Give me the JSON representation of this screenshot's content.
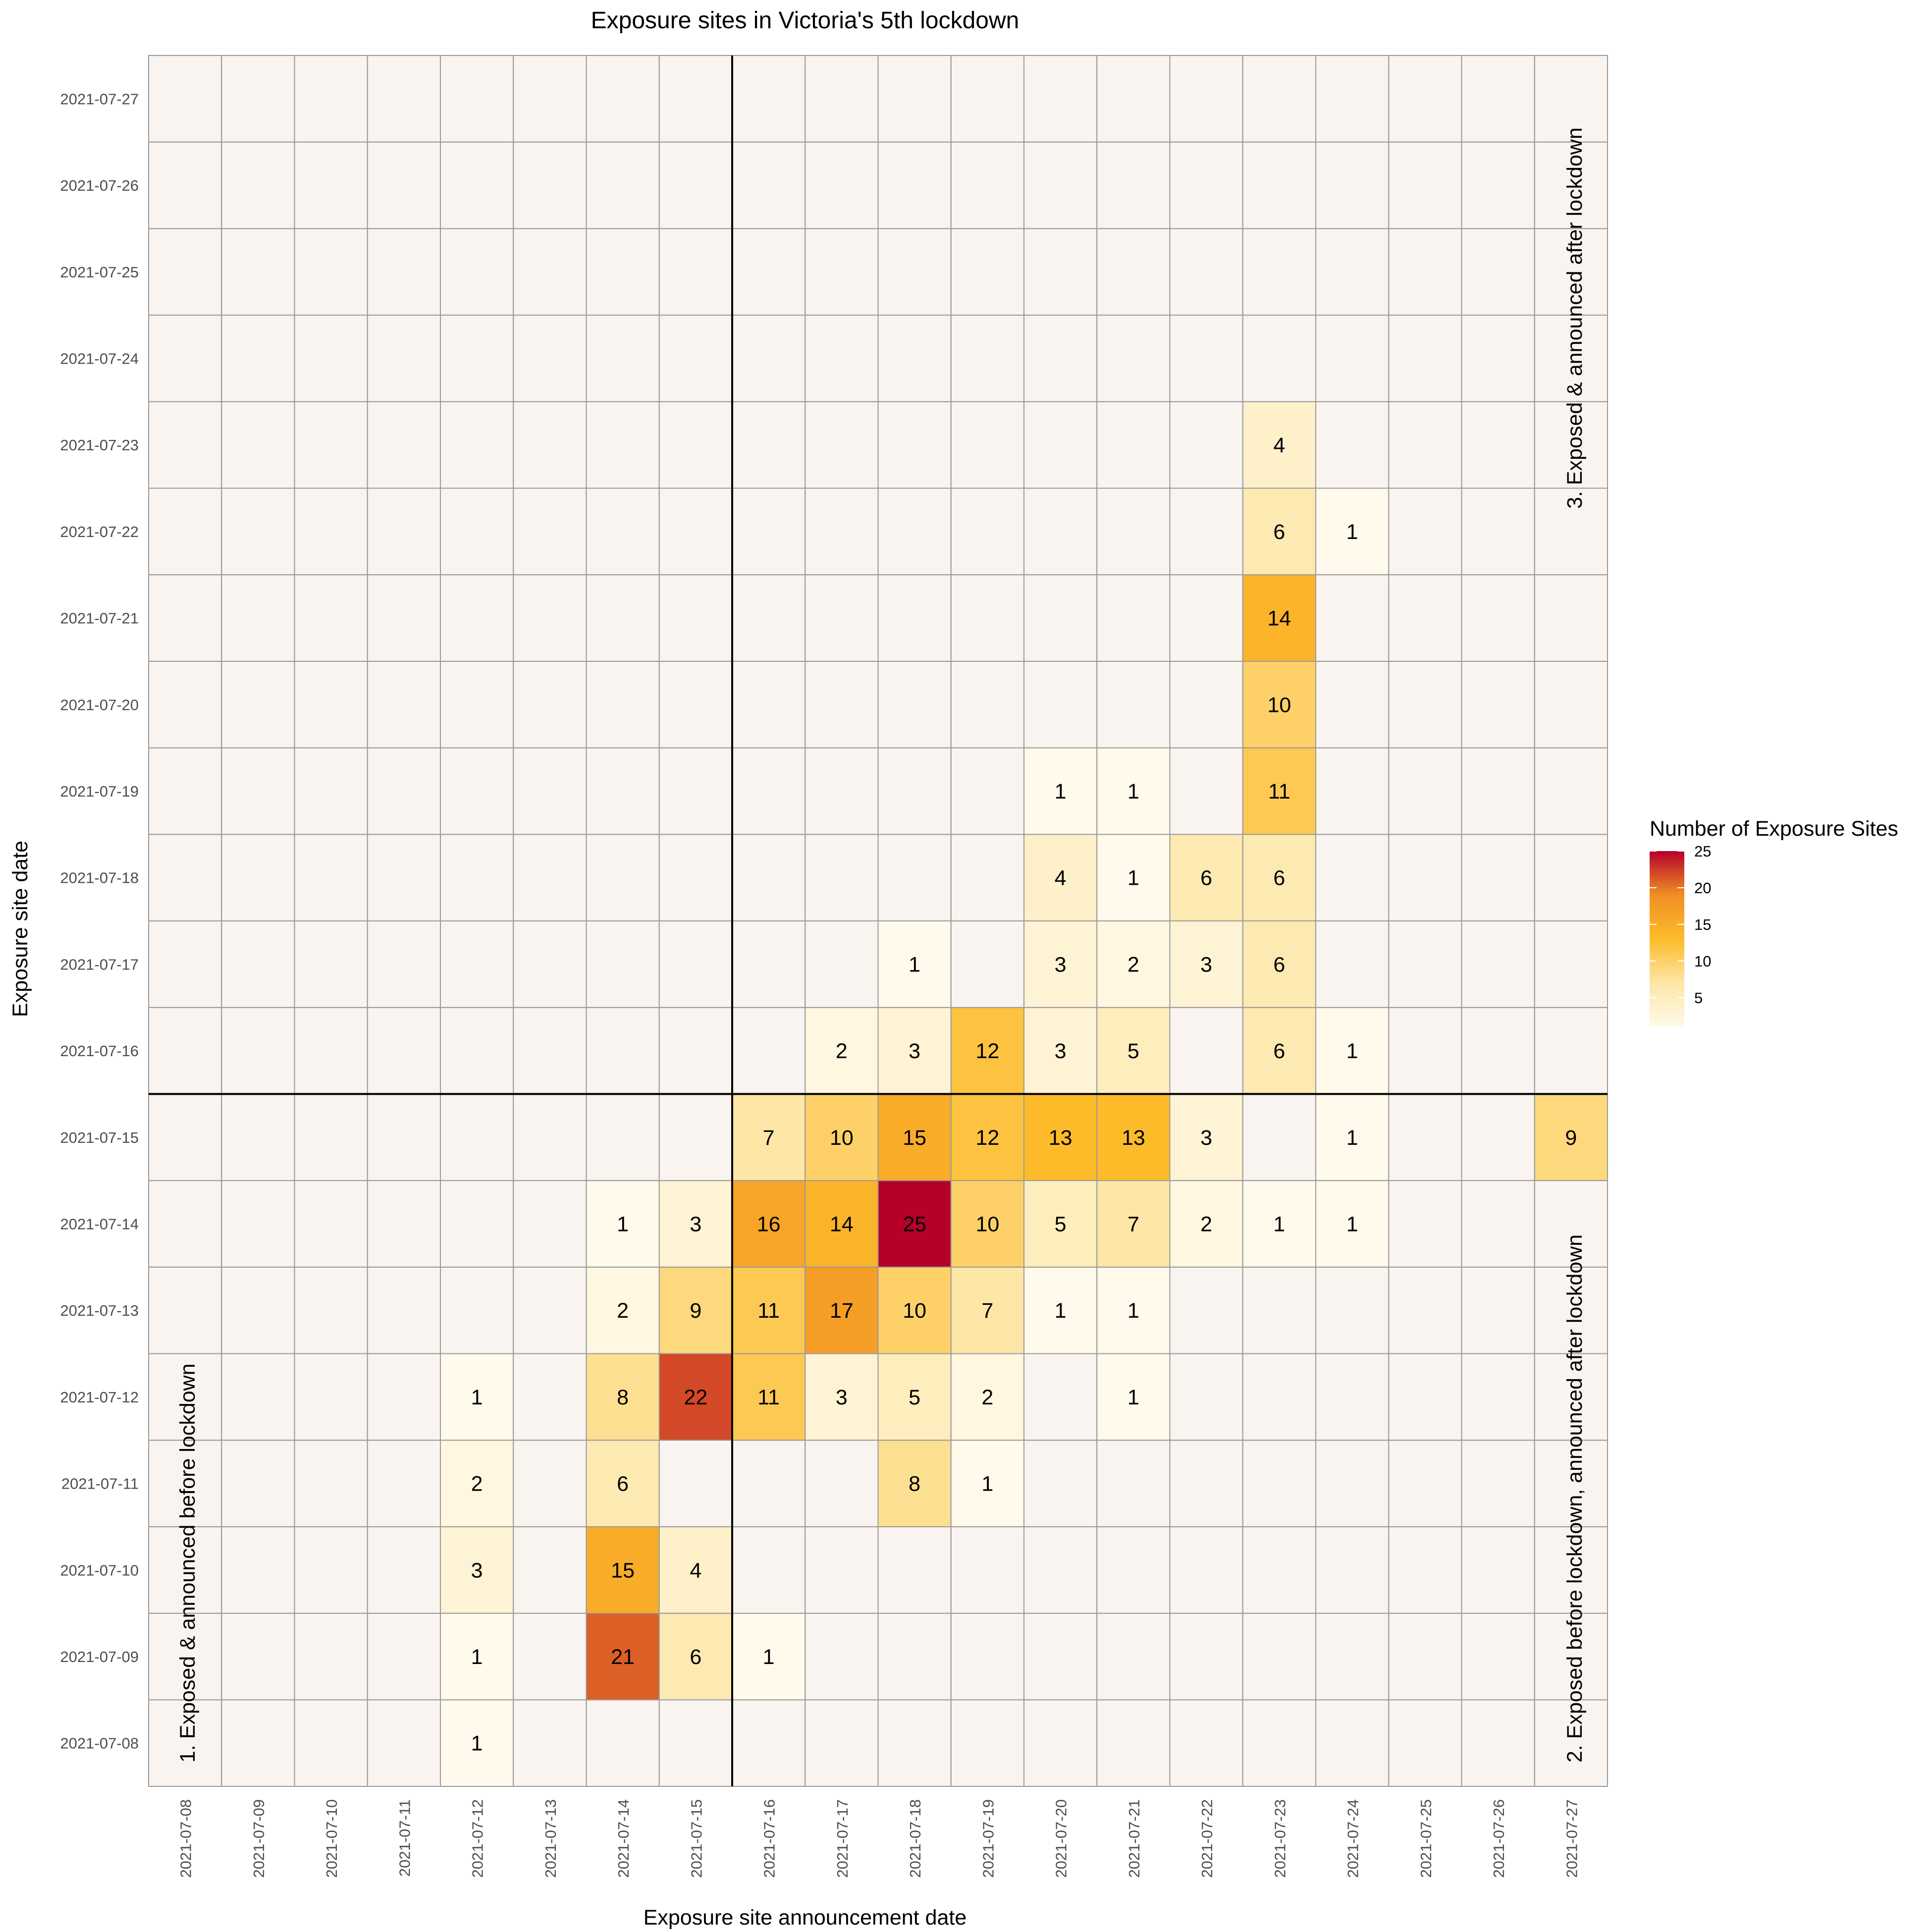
{
  "chart_data": {
    "type": "heatmap",
    "title": "Exposure sites in Victoria's 5th lockdown",
    "xlabel": "Exposure site announcement date",
    "ylabel": "Exposure site date",
    "x": [
      "2021-07-08",
      "2021-07-09",
      "2021-07-10",
      "2021-07-11",
      "2021-07-12",
      "2021-07-13",
      "2021-07-14",
      "2021-07-15",
      "2021-07-16",
      "2021-07-17",
      "2021-07-18",
      "2021-07-19",
      "2021-07-20",
      "2021-07-21",
      "2021-07-22",
      "2021-07-23",
      "2021-07-24",
      "2021-07-25",
      "2021-07-26",
      "2021-07-27"
    ],
    "y": [
      "2021-07-08",
      "2021-07-09",
      "2021-07-10",
      "2021-07-11",
      "2021-07-12",
      "2021-07-13",
      "2021-07-14",
      "2021-07-15",
      "2021-07-16",
      "2021-07-17",
      "2021-07-18",
      "2021-07-19",
      "2021-07-20",
      "2021-07-21",
      "2021-07-22",
      "2021-07-23",
      "2021-07-24",
      "2021-07-25",
      "2021-07-26",
      "2021-07-27"
    ],
    "cells": [
      [
        "2021-07-12",
        "2021-07-08",
        1
      ],
      [
        "2021-07-12",
        "2021-07-09",
        1
      ],
      [
        "2021-07-14",
        "2021-07-09",
        21
      ],
      [
        "2021-07-15",
        "2021-07-09",
        6
      ],
      [
        "2021-07-16",
        "2021-07-09",
        1
      ],
      [
        "2021-07-12",
        "2021-07-10",
        3
      ],
      [
        "2021-07-14",
        "2021-07-10",
        15
      ],
      [
        "2021-07-15",
        "2021-07-10",
        4
      ],
      [
        "2021-07-12",
        "2021-07-11",
        2
      ],
      [
        "2021-07-14",
        "2021-07-11",
        6
      ],
      [
        "2021-07-18",
        "2021-07-11",
        8
      ],
      [
        "2021-07-19",
        "2021-07-11",
        1
      ],
      [
        "2021-07-12",
        "2021-07-12",
        1
      ],
      [
        "2021-07-14",
        "2021-07-12",
        8
      ],
      [
        "2021-07-15",
        "2021-07-12",
        22
      ],
      [
        "2021-07-16",
        "2021-07-12",
        11
      ],
      [
        "2021-07-17",
        "2021-07-12",
        3
      ],
      [
        "2021-07-18",
        "2021-07-12",
        5
      ],
      [
        "2021-07-19",
        "2021-07-12",
        2
      ],
      [
        "2021-07-21",
        "2021-07-12",
        1
      ],
      [
        "2021-07-14",
        "2021-07-13",
        2
      ],
      [
        "2021-07-15",
        "2021-07-13",
        9
      ],
      [
        "2021-07-16",
        "2021-07-13",
        11
      ],
      [
        "2021-07-17",
        "2021-07-13",
        17
      ],
      [
        "2021-07-18",
        "2021-07-13",
        10
      ],
      [
        "2021-07-19",
        "2021-07-13",
        7
      ],
      [
        "2021-07-20",
        "2021-07-13",
        1
      ],
      [
        "2021-07-21",
        "2021-07-13",
        1
      ],
      [
        "2021-07-14",
        "2021-07-14",
        1
      ],
      [
        "2021-07-15",
        "2021-07-14",
        3
      ],
      [
        "2021-07-16",
        "2021-07-14",
        16
      ],
      [
        "2021-07-17",
        "2021-07-14",
        14
      ],
      [
        "2021-07-18",
        "2021-07-14",
        25
      ],
      [
        "2021-07-19",
        "2021-07-14",
        10
      ],
      [
        "2021-07-20",
        "2021-07-14",
        5
      ],
      [
        "2021-07-21",
        "2021-07-14",
        7
      ],
      [
        "2021-07-22",
        "2021-07-14",
        2
      ],
      [
        "2021-07-23",
        "2021-07-14",
        1
      ],
      [
        "2021-07-24",
        "2021-07-14",
        1
      ],
      [
        "2021-07-16",
        "2021-07-15",
        7
      ],
      [
        "2021-07-17",
        "2021-07-15",
        10
      ],
      [
        "2021-07-18",
        "2021-07-15",
        15
      ],
      [
        "2021-07-19",
        "2021-07-15",
        12
      ],
      [
        "2021-07-20",
        "2021-07-15",
        13
      ],
      [
        "2021-07-21",
        "2021-07-15",
        13
      ],
      [
        "2021-07-22",
        "2021-07-15",
        3
      ],
      [
        "2021-07-24",
        "2021-07-15",
        1
      ],
      [
        "2021-07-27",
        "2021-07-15",
        9
      ],
      [
        "2021-07-17",
        "2021-07-16",
        2
      ],
      [
        "2021-07-18",
        "2021-07-16",
        3
      ],
      [
        "2021-07-19",
        "2021-07-16",
        12
      ],
      [
        "2021-07-20",
        "2021-07-16",
        3
      ],
      [
        "2021-07-21",
        "2021-07-16",
        5
      ],
      [
        "2021-07-23",
        "2021-07-16",
        6
      ],
      [
        "2021-07-24",
        "2021-07-16",
        1
      ],
      [
        "2021-07-18",
        "2021-07-17",
        1
      ],
      [
        "2021-07-20",
        "2021-07-17",
        3
      ],
      [
        "2021-07-21",
        "2021-07-17",
        2
      ],
      [
        "2021-07-22",
        "2021-07-17",
        3
      ],
      [
        "2021-07-23",
        "2021-07-17",
        6
      ],
      [
        "2021-07-20",
        "2021-07-18",
        4
      ],
      [
        "2021-07-21",
        "2021-07-18",
        1
      ],
      [
        "2021-07-22",
        "2021-07-18",
        6
      ],
      [
        "2021-07-23",
        "2021-07-18",
        6
      ],
      [
        "2021-07-20",
        "2021-07-19",
        1
      ],
      [
        "2021-07-21",
        "2021-07-19",
        1
      ],
      [
        "2021-07-23",
        "2021-07-19",
        11
      ],
      [
        "2021-07-23",
        "2021-07-20",
        10
      ],
      [
        "2021-07-23",
        "2021-07-21",
        14
      ],
      [
        "2021-07-23",
        "2021-07-22",
        6
      ],
      [
        "2021-07-24",
        "2021-07-22",
        1
      ],
      [
        "2021-07-23",
        "2021-07-23",
        4
      ]
    ],
    "divider_x": "2021-07-15",
    "divider_y": "2021-07-15",
    "annotations": [
      "1. Exposed & announced before lockdown",
      "2. Exposed before lockdown, announced after lockdown",
      "3. Exposed & announced after lockdown"
    ],
    "legend": {
      "title": "Number of Exposure Sites",
      "position": "right",
      "ticks": [
        5,
        10,
        15,
        20,
        25
      ],
      "range": [
        1,
        25
      ],
      "colors": [
        "#FFFAEB",
        "#FDE6A6",
        "#FDBB2A",
        "#EF8F24",
        "#B6002A"
      ]
    },
    "colors": {
      "empty_cell": "#F9F4F0",
      "grid": "#999999",
      "divider": "#000000"
    },
    "grid": true
  }
}
